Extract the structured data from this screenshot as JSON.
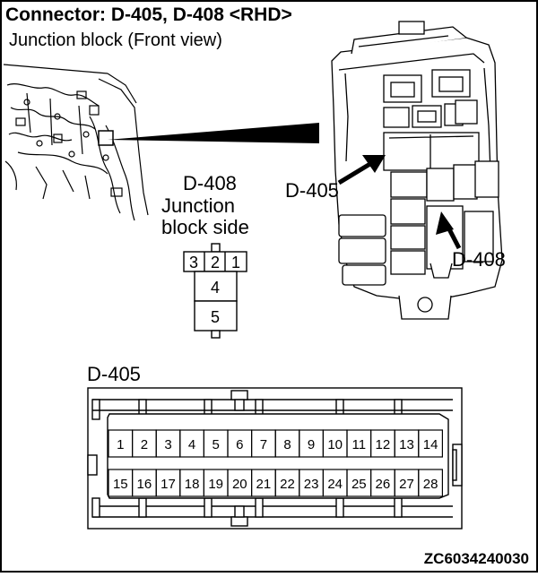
{
  "header": {
    "title": "Connector: D-405, D-408 <RHD>",
    "subtitle": "Junction block (Front view)"
  },
  "callouts": {
    "d405": "D-405",
    "d408": "D-408"
  },
  "d408_view": {
    "name": "D-408",
    "side_line1": "Junction",
    "side_line2": "block side",
    "pins_top": [
      "3",
      "2",
      "1"
    ],
    "pins_stack": [
      "4",
      "5"
    ]
  },
  "d405_connector": {
    "name": "D-405",
    "row1": [
      "1",
      "2",
      "3",
      "4",
      "5",
      "6",
      "7",
      "8",
      "9",
      "10",
      "11",
      "12",
      "13",
      "14"
    ],
    "row2": [
      "15",
      "16",
      "17",
      "18",
      "19",
      "20",
      "21",
      "22",
      "23",
      "24",
      "25",
      "26",
      "27",
      "28"
    ]
  },
  "figure_code": "ZC6034240030"
}
